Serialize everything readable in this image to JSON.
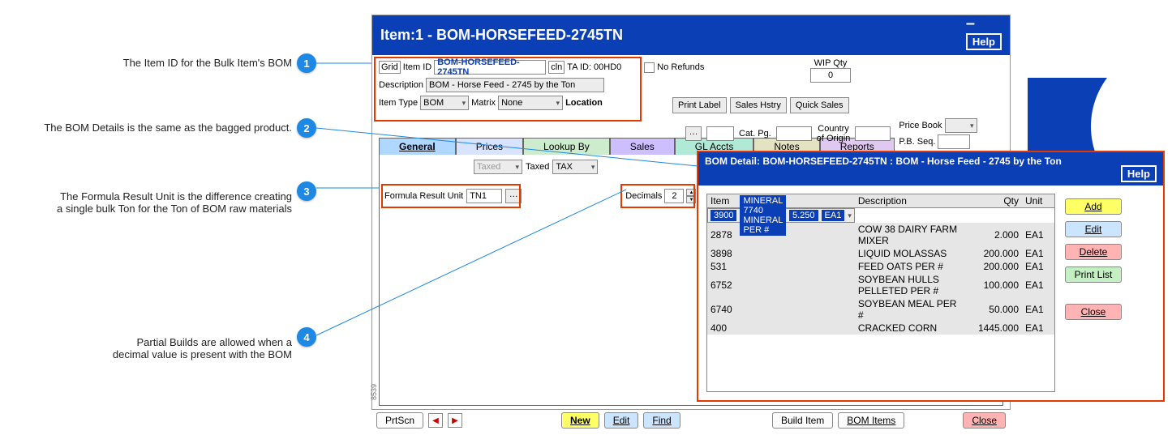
{
  "annotations": {
    "a1": {
      "n": "1",
      "text": "The Item ID for the Bulk Item's BOM"
    },
    "a2": {
      "n": "2",
      "text": "The BOM Details is the same as the bagged product."
    },
    "a3": {
      "n": "3",
      "text": "The Formula Result Unit is the difference creating\na single bulk Ton for the Ton of BOM raw materials"
    },
    "a4": {
      "n": "4",
      "text": "Partial Builds are allowed when a\ndecimal value is present with the BOM"
    }
  },
  "window": {
    "title": "Item:1 - BOM-HORSEFEED-2745TN",
    "help": "Help"
  },
  "form": {
    "grid_lbl": "Grid",
    "itemid_lbl": "Item ID",
    "itemid": "BOM-HORSEFEED-2745TN",
    "cln_lbl": "cln",
    "taid_lbl": "TA ID:",
    "taid": "00HD0",
    "norefunds": "No Refunds",
    "wip_lbl": "WIP Qty",
    "wip": "0",
    "desc_lbl": "Description",
    "desc": "BOM - Horse Feed - 2745 by the Ton",
    "itemtype_lbl": "Item Type",
    "itemtype": "BOM",
    "matrix_lbl": "Matrix",
    "matrix": "None",
    "location_lbl": "Location",
    "catpg_lbl": "Cat. Pg.",
    "country_lbl": "Country\nof Origin",
    "pricebook_lbl": "Price Book",
    "pbseq_lbl": "P.B. Seq.",
    "printlabel": "Print Label",
    "saleshstry": "Sales Hstry",
    "quicksales": "Quick Sales"
  },
  "tabs": {
    "general": "General",
    "prices": "Prices",
    "lookup": "Lookup By",
    "sales": "Sales",
    "gl": "GL Accts",
    "notes": "Notes",
    "reports": "Reports"
  },
  "general": {
    "taxed1": "Taxed",
    "taxed_chk": "Taxed",
    "tax_sel": "TAX",
    "formula_lbl": "Formula Result Unit",
    "formula_val": "TN1",
    "decimals_lbl": "Decimals",
    "decimals_val": "2"
  },
  "footer": {
    "prtscn": "PrtScn",
    "new": "New",
    "edit": "Edit",
    "find": "Find",
    "build": "Build Item",
    "bomitems": "BOM Items",
    "close": "Close"
  },
  "bom": {
    "title": "BOM Detail: BOM-HORSEFEED-2745TN : BOM - Horse Feed - 2745 by the Ton",
    "help": "Help",
    "cols": {
      "item": "Item",
      "desc": "Description",
      "qty": "Qty",
      "unit": "Unit"
    },
    "rows": [
      {
        "item": "3900",
        "desc": "MINERAL 7740 MINERAL PER #",
        "qty": "5.250",
        "unit": "EA1"
      },
      {
        "item": "2878",
        "desc": "COW 38 DAIRY FARM MIXER",
        "qty": "2.000",
        "unit": "EA1"
      },
      {
        "item": "3898",
        "desc": "LIQUID MOLASSAS",
        "qty": "200.000",
        "unit": "EA1"
      },
      {
        "item": "531",
        "desc": "FEED OATS PER #",
        "qty": "200.000",
        "unit": "EA1"
      },
      {
        "item": "6752",
        "desc": "SOYBEAN HULLS PELLETED PER #",
        "qty": "100.000",
        "unit": "EA1"
      },
      {
        "item": "6740",
        "desc": "SOYBEAN MEAL PER #",
        "qty": "50.000",
        "unit": "EA1"
      },
      {
        "item": "400",
        "desc": "CRACKED CORN",
        "qty": "1445.000",
        "unit": "EA1"
      }
    ],
    "buttons": {
      "add": "Add",
      "edit": "Edit",
      "delete": "Delete",
      "print": "Print List",
      "close": "Close"
    }
  },
  "sidenum": "8539"
}
